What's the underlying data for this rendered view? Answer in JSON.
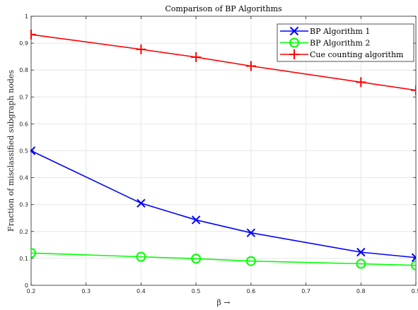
{
  "chart_data": {
    "type": "line",
    "title": "Comparison of BP Algorithms",
    "xlabel": "β →",
    "ylabel": "Fraction of misclassified subgraph nodes",
    "xlim": [
      0.2,
      0.9
    ],
    "ylim": [
      0,
      1
    ],
    "xticks": [
      "0.2",
      "0.3",
      "0.4",
      "0.5",
      "0.6",
      "0.7",
      "0.8",
      "0.9"
    ],
    "yticks": [
      "0",
      "0.1",
      "0.2",
      "0.3",
      "0.4",
      "0.5",
      "0.6",
      "0.7",
      "0.8",
      "0.9",
      "1"
    ],
    "grid": true,
    "legend_position": "top-right",
    "series": [
      {
        "name": "BP Algorithm 1",
        "color": "#0000ff",
        "marker": "x",
        "x": [
          0.2,
          0.4,
          0.5,
          0.6,
          0.8,
          0.9
        ],
        "y": [
          0.5,
          0.305,
          0.243,
          0.195,
          0.123,
          0.103
        ]
      },
      {
        "name": "BP Algorithm 2",
        "color": "#00ff00",
        "marker": "circle",
        "x": [
          0.2,
          0.4,
          0.5,
          0.6,
          0.8,
          0.9
        ],
        "y": [
          0.12,
          0.106,
          0.099,
          0.09,
          0.08,
          0.074
        ]
      },
      {
        "name": "Cue counting algorithm",
        "color": "#ff0000",
        "marker": "plus",
        "x": [
          0.2,
          0.4,
          0.5,
          0.6,
          0.8,
          0.9
        ],
        "y": [
          0.932,
          0.877,
          0.848,
          0.815,
          0.755,
          0.725
        ]
      }
    ]
  }
}
